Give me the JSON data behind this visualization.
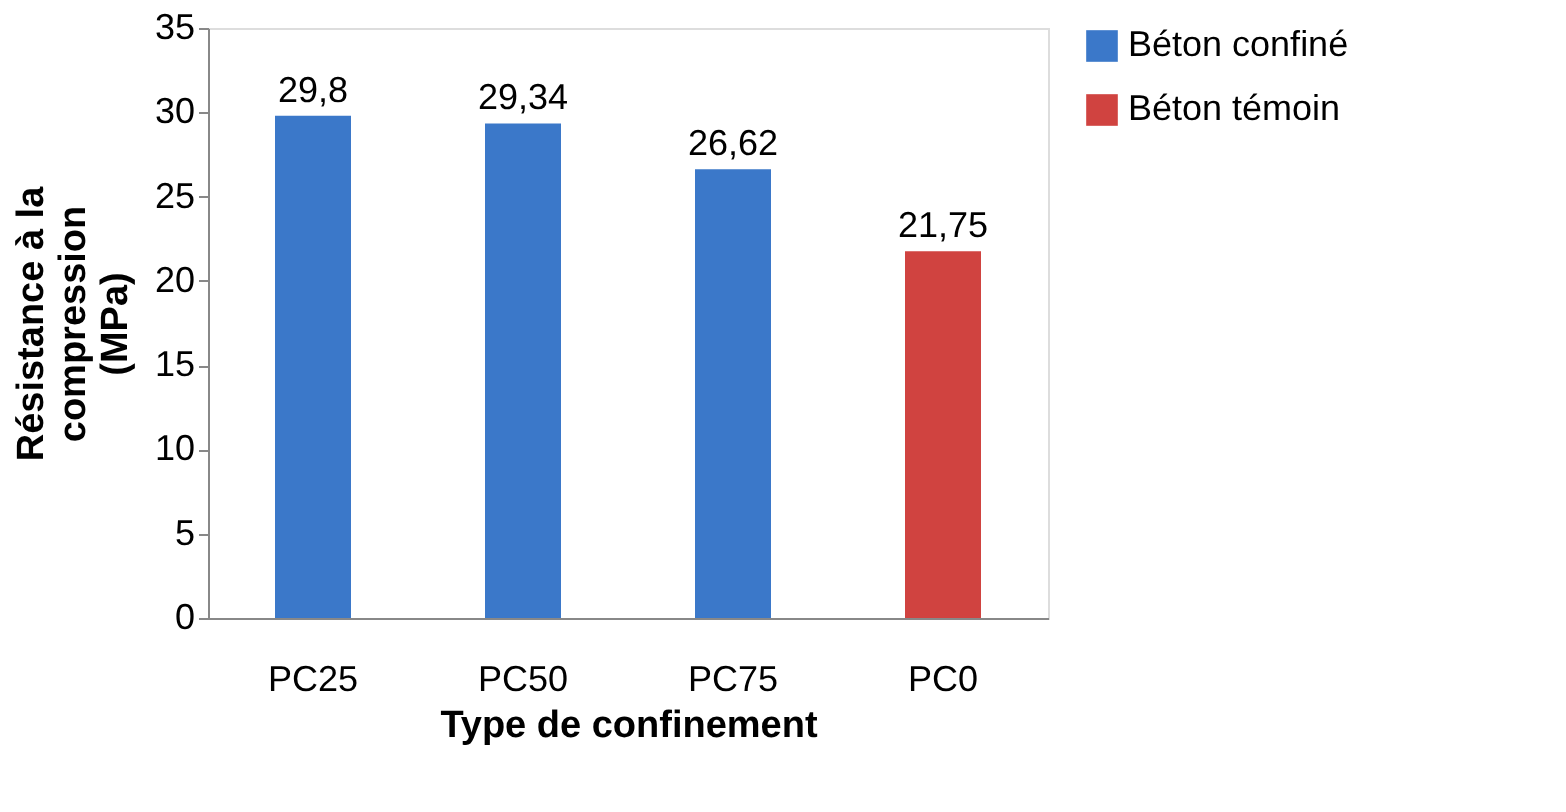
{
  "chart_data": {
    "type": "bar",
    "xlabel": "Type de confinement",
    "ylabel": "Résistance à la\ncompression\n(MPa)",
    "categories": [
      "PC25",
      "PC50",
      "PC75",
      "PC0"
    ],
    "series": [
      {
        "name": "Béton confiné",
        "color": "#3b78c9",
        "values": [
          29.8,
          29.34,
          26.62,
          null
        ],
        "value_labels": [
          "29,8",
          "29,34",
          "26,62",
          null
        ]
      },
      {
        "name": "Béton témoin",
        "color": "#d04340",
        "values": [
          null,
          null,
          null,
          21.75
        ],
        "value_labels": [
          null,
          null,
          null,
          "21,75"
        ]
      }
    ],
    "ylim": [
      0,
      35
    ],
    "yticks": [
      0,
      5,
      10,
      15,
      20,
      25,
      30,
      35
    ],
    "grid": false,
    "legend": "right"
  }
}
